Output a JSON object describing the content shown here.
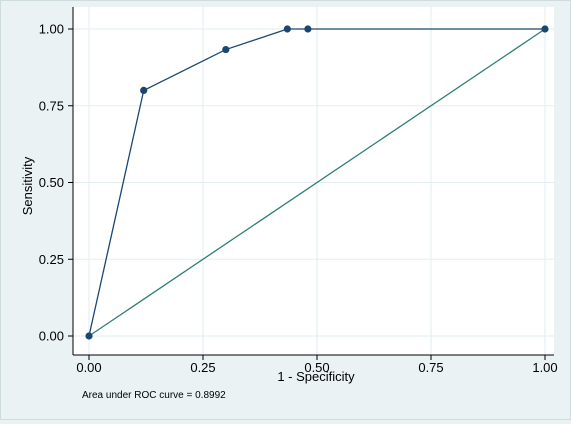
{
  "chart_data": {
    "type": "line",
    "xlabel": "1 - Specificity",
    "ylabel": "Sensitivity",
    "xlim": [
      0,
      1
    ],
    "ylim": [
      0,
      1
    ],
    "x_ticks": [
      0,
      0.25,
      0.5,
      0.75,
      1
    ],
    "x_tick_labels": [
      "0.00",
      "0.25",
      "0.50",
      "0.75",
      "1.00"
    ],
    "y_ticks": [
      0,
      0.25,
      0.5,
      0.75,
      1
    ],
    "y_tick_labels": [
      "0.00",
      "0.25",
      "0.50",
      "0.75",
      "1.00"
    ],
    "grid": true,
    "series": [
      {
        "role": "roc-curve",
        "color": "#1a476f",
        "markers": true,
        "x": [
          0,
          0.12,
          0.3,
          0.435,
          0.48,
          1.0
        ],
        "y": [
          0,
          0.8,
          0.933,
          1.0,
          1.0,
          1.0
        ]
      },
      {
        "role": "reference-line",
        "color": "#2d7f74",
        "markers": false,
        "x": [
          0,
          1
        ],
        "y": [
          0,
          1
        ]
      }
    ],
    "note": "Area under ROC curve = 0.8992"
  },
  "colors": {
    "background": "#eaf2f3",
    "plot_background": "#ffffff",
    "grid": "#e2edf0",
    "axis": "#000000"
  }
}
